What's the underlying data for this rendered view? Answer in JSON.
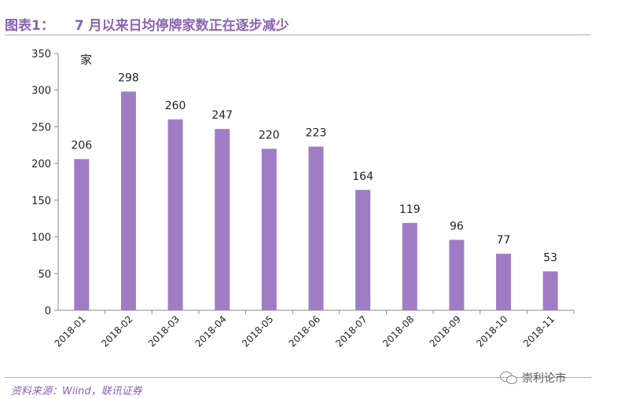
{
  "title": {
    "prefix": "图表1：",
    "text": "7 月以来日均停牌家数正在逐步减少"
  },
  "source": "资料来源：Wiind，联讯证券",
  "watermark": {
    "icon": "wechat-icon",
    "text": "崇利论市"
  },
  "colors": {
    "bar": "#a07cc5",
    "title": "#8b63b0",
    "rule": "#b79ccd"
  },
  "chart_data": {
    "type": "bar",
    "title": "",
    "unit_label": "家",
    "xlabel": "",
    "ylabel": "",
    "categories": [
      "2018-01",
      "2018-02",
      "2018-03",
      "2018-04",
      "2018-05",
      "2018-06",
      "2018-07",
      "2018-08",
      "2018-09",
      "2018-10",
      "2018-11"
    ],
    "values": [
      206,
      298,
      260,
      247,
      220,
      223,
      164,
      119,
      96,
      77,
      53
    ],
    "ylim": [
      0,
      350
    ],
    "yticks": [
      0,
      50,
      100,
      150,
      200,
      250,
      300,
      350
    ],
    "grid": false,
    "legend": "none",
    "data_labels": true
  }
}
